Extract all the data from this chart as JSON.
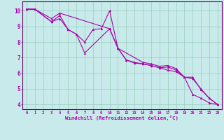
{
  "xlabel": "Windchill (Refroidissement éolien,°C)",
  "bg_color": "#c8eaea",
  "grid_color": "#99ccbb",
  "line_color": "#aa00aa",
  "spine_color": "#660066",
  "xlim": [
    -0.5,
    23.5
  ],
  "ylim": [
    3.7,
    10.6
  ],
  "xticks": [
    0,
    1,
    2,
    3,
    4,
    5,
    6,
    7,
    8,
    9,
    10,
    11,
    12,
    13,
    14,
    15,
    16,
    17,
    18,
    19,
    20,
    21,
    22,
    23
  ],
  "yticks": [
    4,
    5,
    6,
    7,
    8,
    9,
    10
  ],
  "lines": [
    {
      "x": [
        0,
        1,
        3,
        4,
        5,
        6,
        7,
        8,
        9,
        10,
        11,
        12,
        13,
        14,
        15,
        16,
        17,
        18,
        19,
        20,
        21,
        22,
        23
      ],
      "y": [
        10.1,
        10.1,
        9.3,
        9.5,
        8.8,
        8.5,
        8.0,
        8.8,
        8.85,
        10.0,
        7.6,
        6.85,
        6.65,
        6.6,
        6.5,
        6.35,
        6.2,
        6.1,
        5.75,
        4.65,
        4.4,
        4.1,
        4.0
      ]
    },
    {
      "x": [
        0,
        1,
        3,
        4,
        5,
        6,
        7,
        10,
        11,
        12,
        13,
        14,
        15,
        16,
        17,
        18,
        19,
        20,
        21,
        22,
        23
      ],
      "y": [
        10.1,
        10.1,
        9.3,
        9.7,
        8.8,
        8.5,
        7.3,
        8.85,
        7.6,
        6.85,
        6.7,
        6.6,
        6.5,
        6.35,
        6.4,
        6.2,
        5.75,
        5.75,
        4.95,
        4.4,
        4.0
      ]
    },
    {
      "x": [
        0,
        1,
        3,
        4,
        10,
        11,
        14,
        15,
        16,
        17,
        18,
        19,
        20,
        21,
        22,
        23
      ],
      "y": [
        10.1,
        10.1,
        9.5,
        9.85,
        8.85,
        7.6,
        6.7,
        6.6,
        6.45,
        6.5,
        6.3,
        5.75,
        5.65,
        5.0,
        4.4,
        4.0
      ]
    }
  ]
}
